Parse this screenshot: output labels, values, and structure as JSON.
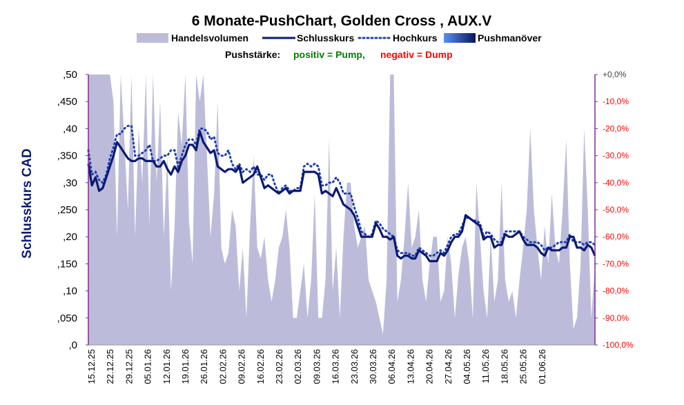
{
  "chart_data": {
    "type": "line",
    "title": "6 Monate-PushChart, Golden Cross , AUX.V",
    "ylabel": "Schlusskurs CAD",
    "legend": {
      "placement": "top",
      "entries": [
        {
          "label": "Handelsvolumen",
          "color": "#bcbcda",
          "kind": "area"
        },
        {
          "label": "Schlusskurs",
          "color": "#0a1a73",
          "kind": "line"
        },
        {
          "label": "Hochkurs",
          "color": "#1f3fb0",
          "kind": "dotted"
        },
        {
          "label": "Pushmanöver",
          "color": "#2a55d8",
          "kind": "gradient"
        }
      ]
    },
    "push_note": {
      "label": "Pushstärke:",
      "positive": "positiv = Pump,",
      "negative": "negativ = Dump",
      "positive_color": "#008000",
      "negative_color": "#ff0000"
    },
    "y_left": {
      "ylim": [
        0,
        0.5
      ],
      "ticks": [
        0,
        0.05,
        0.1,
        0.15,
        0.2,
        0.25,
        0.3,
        0.35,
        0.4,
        0.45,
        0.5
      ],
      "tick_labels": [
        ",0",
        ",050",
        ",10",
        ",150",
        ",20",
        ",250",
        ",30",
        ",350",
        ",40",
        ",450",
        ",50"
      ]
    },
    "y_right": {
      "range": [
        -100,
        0
      ],
      "tick_labels": [
        "-100,0%",
        "-90,0%",
        "-80,0%",
        "-70,0%",
        "-60,0%",
        "-50,0%",
        "-40,0%",
        "-30,0%",
        "-20,0%",
        "-10,0%",
        "+0,0%"
      ],
      "color": "#ff0000",
      "top_color": "#404040"
    },
    "x_ticks": [
      "15.12.25",
      "22.12.25",
      "29.12.25",
      "05.01.26",
      "12.01.26",
      "19.01.26",
      "26.01.26",
      "02.02.26",
      "09.02.26",
      "16.02.26",
      "23.02.26",
      "02.03.26",
      "09.03.26",
      "16.03.26",
      "23.03.26",
      "30.03.26",
      "06.04.26",
      "13.04.26",
      "20.04.26",
      "27.04.26",
      "04.05.26",
      "11.05.26",
      "18.05.26",
      "25.05.26",
      "01.06.26"
    ],
    "grid": false,
    "series": [
      {
        "name": "Schlusskurs",
        "values": [
          0.335,
          0.295,
          0.31,
          0.285,
          0.29,
          0.31,
          0.33,
          0.35,
          0.375,
          0.365,
          0.355,
          0.345,
          0.34,
          0.34,
          0.345,
          0.345,
          0.34,
          0.34,
          0.34,
          0.33,
          0.33,
          0.34,
          0.325,
          0.315,
          0.33,
          0.32,
          0.34,
          0.35,
          0.37,
          0.37,
          0.36,
          0.395,
          0.375,
          0.365,
          0.355,
          0.36,
          0.33,
          0.325,
          0.32,
          0.325,
          0.325,
          0.32,
          0.33,
          0.3,
          0.305,
          0.31,
          0.315,
          0.33,
          0.31,
          0.29,
          0.295,
          0.29,
          0.285,
          0.28,
          0.285,
          0.29,
          0.28,
          0.285,
          0.285,
          0.285,
          0.32,
          0.32,
          0.32,
          0.32,
          0.315,
          0.28,
          0.285,
          0.28,
          0.275,
          0.29,
          0.275,
          0.26,
          0.255,
          0.25,
          0.24,
          0.22,
          0.2,
          0.2,
          0.2,
          0.2,
          0.225,
          0.215,
          0.2,
          0.2,
          0.195,
          0.2,
          0.165,
          0.16,
          0.165,
          0.165,
          0.16,
          0.16,
          0.175,
          0.17,
          0.165,
          0.155,
          0.155,
          0.155,
          0.17,
          0.165,
          0.175,
          0.19,
          0.2,
          0.2,
          0.21,
          0.24,
          0.235,
          0.23,
          0.225,
          0.22,
          0.195,
          0.2,
          0.2,
          0.18,
          0.185,
          0.185,
          0.205,
          0.2,
          0.2,
          0.205,
          0.21,
          0.195,
          0.185,
          0.185,
          0.185,
          0.18,
          0.17,
          0.165,
          0.18,
          0.175,
          0.175,
          0.175,
          0.18,
          0.18,
          0.2,
          0.2,
          0.18,
          0.18,
          0.175,
          0.185,
          0.18,
          0.165
        ]
      },
      {
        "name": "Hochkurs",
        "values": [
          0.36,
          0.315,
          0.32,
          0.305,
          0.3,
          0.315,
          0.345,
          0.365,
          0.39,
          0.39,
          0.4,
          0.405,
          0.405,
          0.35,
          0.35,
          0.355,
          0.36,
          0.37,
          0.34,
          0.34,
          0.345,
          0.35,
          0.35,
          0.36,
          0.36,
          0.33,
          0.35,
          0.37,
          0.38,
          0.38,
          0.37,
          0.4,
          0.4,
          0.395,
          0.38,
          0.385,
          0.355,
          0.35,
          0.35,
          0.36,
          0.335,
          0.325,
          0.335,
          0.32,
          0.325,
          0.32,
          0.33,
          0.315,
          0.315,
          0.305,
          0.315,
          0.315,
          0.295,
          0.28,
          0.29,
          0.295,
          0.285,
          0.285,
          0.29,
          0.29,
          0.33,
          0.335,
          0.33,
          0.335,
          0.33,
          0.295,
          0.295,
          0.3,
          0.3,
          0.31,
          0.3,
          0.28,
          0.28,
          0.28,
          0.255,
          0.235,
          0.21,
          0.205,
          0.2,
          0.205,
          0.23,
          0.225,
          0.215,
          0.21,
          0.205,
          0.2,
          0.175,
          0.17,
          0.17,
          0.17,
          0.165,
          0.165,
          0.18,
          0.175,
          0.17,
          0.165,
          0.165,
          0.17,
          0.175,
          0.17,
          0.185,
          0.2,
          0.205,
          0.205,
          0.22,
          0.235,
          0.235,
          0.23,
          0.23,
          0.225,
          0.2,
          0.21,
          0.205,
          0.195,
          0.19,
          0.19,
          0.21,
          0.21,
          0.21,
          0.21,
          0.21,
          0.2,
          0.195,
          0.19,
          0.19,
          0.19,
          0.185,
          0.175,
          0.18,
          0.18,
          0.185,
          0.19,
          0.19,
          0.19,
          0.205,
          0.19,
          0.19,
          0.19,
          0.185,
          0.19,
          0.19,
          0.185
        ]
      },
      {
        "name": "Handelsvolumen",
        "values": [
          0.5,
          0.5,
          0.5,
          0.5,
          0.5,
          0.5,
          0.5,
          0.45,
          0.2,
          0.5,
          0.38,
          0.25,
          0.5,
          0.2,
          0.4,
          0.3,
          0.5,
          0.22,
          0.5,
          0.3,
          0.45,
          0.2,
          0.35,
          0.1,
          0.22,
          0.43,
          0.37,
          0.5,
          0.23,
          0.15,
          0.5,
          0.45,
          0.5,
          0.35,
          0.2,
          0.28,
          0.45,
          0.18,
          0.15,
          0.17,
          0.25,
          0.22,
          0.1,
          0.18,
          0.05,
          0.22,
          0.35,
          0.18,
          0.16,
          0.2,
          0.12,
          0.08,
          0.12,
          0.18,
          0.2,
          0.25,
          0.18,
          0.05,
          0.05,
          0.1,
          0.15,
          0.05,
          0.12,
          0.28,
          0.05,
          0.05,
          0.12,
          0.38,
          0.1,
          0.18,
          0.05,
          0.2,
          0.3,
          0.3,
          0.22,
          0.18,
          0.2,
          0.22,
          0.12,
          0.1,
          0.08,
          0.05,
          0.02,
          0.12,
          0.5,
          0.5,
          0.08,
          0.12,
          0.2,
          0.3,
          0.18,
          0.2,
          0.25,
          0.12,
          0.08,
          0.15,
          0.2,
          0.2,
          0.08,
          0.1,
          0.2,
          0.15,
          0.05,
          0.13,
          0.18,
          0.2,
          0.15,
          0.05,
          0.3,
          0.2,
          0.1,
          0.05,
          0.2,
          0.08,
          0.12,
          0.3,
          0.12,
          0.08,
          0.1,
          0.05,
          0.12,
          0.18,
          0.25,
          0.4,
          0.25,
          0.18,
          0.12,
          0.22,
          0.15,
          0.28,
          0.18,
          0.15,
          0.25,
          0.38,
          0.15,
          0.03,
          0.05,
          0.15,
          0.4,
          0.25,
          0.05,
          0.15
        ]
      }
    ]
  }
}
